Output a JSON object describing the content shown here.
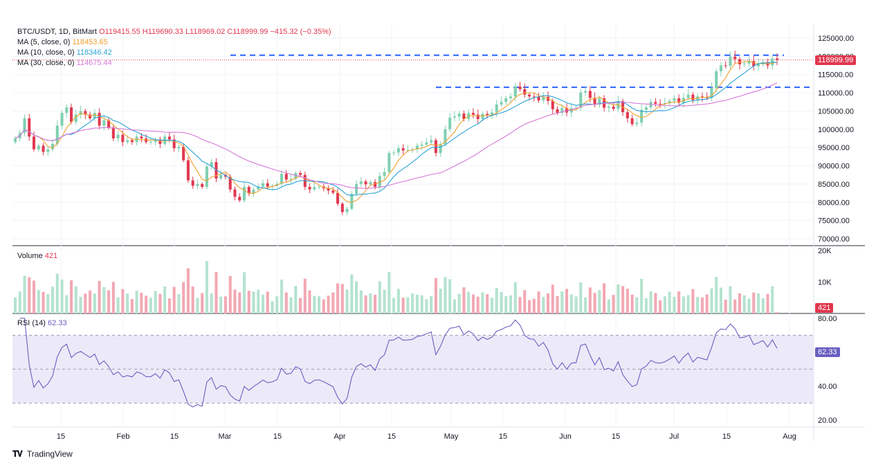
{
  "header": {
    "symbol": "BTC/USDT, 1D, BitMart",
    "ohlc": "O119415.55 H119690.33 L118969.02 C118999.99 −415.32 (−0.35%)"
  },
  "indicators": {
    "ma5": {
      "label": "MA (5, close, 0)",
      "value": "118453.65"
    },
    "ma10": {
      "label": "MA (10, close, 0)",
      "value": "118346.42"
    },
    "ma30": {
      "label": "MA (30, close, 0)",
      "value": "114675.44"
    },
    "volume": {
      "label": "Volume",
      "value": "421"
    },
    "rsi": {
      "label": "RSI (14)",
      "value": "62.33"
    }
  },
  "price_tag": "118999.99",
  "volume_tag": "421",
  "rsi_tag": "62.33",
  "footer": {
    "brand": "TradingView"
  },
  "colors": {
    "up": "#7fd0b0",
    "down": "#e0384f",
    "ma5": "#f0a030",
    "ma10": "#2aa3d6",
    "ma30": "#d678d8",
    "rsi": "#6a5fc1",
    "level": "#2962ff"
  },
  "chart_data": [
    {
      "type": "candlestick",
      "title": "BTC/USDT, 1D, BitMart",
      "ylim": [
        70000,
        127500
      ],
      "yticks": [
        "125000.00",
        "120000.00",
        "115000.00",
        "110000.00",
        "105000.00",
        "100000.00",
        "95000.00",
        "90000.00",
        "85000.00",
        "80000.00",
        "75000.00",
        "70000.00"
      ],
      "xticks": [
        "15",
        "Feb",
        "15",
        "Mar",
        "15",
        "Apr",
        "15",
        "May",
        "15",
        "Jun",
        "15",
        "Jul",
        "15",
        "Aug"
      ],
      "candle_closes": [
        97500,
        99000,
        103000,
        98000,
        94500,
        95500,
        93800,
        94500,
        96000,
        101000,
        104500,
        106000,
        102000,
        104000,
        105000,
        104000,
        103000,
        104500,
        101000,
        102500,
        100500,
        97500,
        98500,
        96500,
        97000,
        96500,
        98000,
        97500,
        96500,
        96500,
        97200,
        96000,
        98000,
        97200,
        94800,
        95200,
        91500,
        86000,
        84500,
        85000,
        84200,
        89800,
        91000,
        86500,
        87500,
        87000,
        83500,
        81500,
        80500,
        84200,
        82500,
        83500,
        84300,
        85200,
        84300,
        84500,
        85000,
        87800,
        86200,
        86400,
        88000,
        87500,
        84200,
        83500,
        84200,
        84300,
        83800,
        83200,
        82600,
        79600,
        77300,
        78200,
        82300,
        85000,
        85700,
        84900,
        85500,
        84200,
        87200,
        88300,
        93500,
        93600,
        94800,
        94200,
        94300,
        94500,
        95500,
        95800,
        96400,
        97000,
        93500,
        95900,
        100000,
        103200,
        103500,
        104300,
        102800,
        104500,
        104000,
        102800,
        104200,
        103800,
        104600,
        106800,
        107500,
        108500,
        109000,
        111700,
        111000,
        109500,
        109000,
        108900,
        107900,
        108900,
        107800,
        105500,
        104500,
        105800,
        104600,
        105800,
        105900,
        110100,
        110500,
        108600,
        106700,
        108500,
        105900,
        106200,
        105600,
        107700,
        104700,
        103000,
        101400,
        101800,
        105300,
        106000,
        107500,
        107000,
        106900,
        107200,
        107800,
        108500,
        107300,
        108600,
        109500,
        108000,
        109000,
        108800,
        108600,
        111300,
        115900,
        117500,
        117400,
        119900,
        119200,
        117800,
        118000,
        118700,
        117300,
        117800,
        118400,
        117500,
        119400,
        119000
      ]
    },
    {
      "type": "bar",
      "title": "Volume",
      "ylabel": "Volume",
      "yticks": [
        "20K",
        "10K"
      ],
      "ylim": [
        0,
        20000
      ],
      "latest": 421
    },
    {
      "type": "line",
      "title": "RSI (14)",
      "ylim": [
        16,
        82
      ],
      "yticks": [
        "80.00",
        "60.00",
        "40.00",
        "20.00"
      ],
      "bands": [
        30,
        50,
        70
      ],
      "latest": 62.33
    }
  ]
}
